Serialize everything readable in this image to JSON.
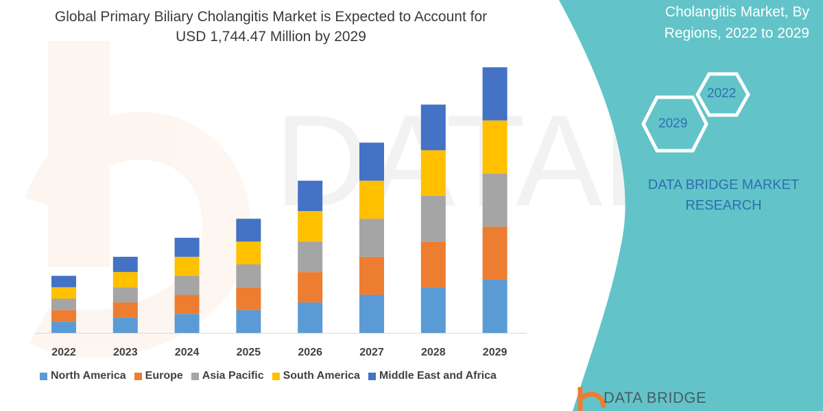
{
  "title": "Global Primary Biliary Cholangitis Market is Expected to Account for USD 1,744.47 Million by 2029",
  "side_panel": {
    "title_lines": [
      "Cholangitis Market, By",
      "Regions, 2022 to 2029"
    ],
    "hex_labels": [
      "2022",
      "2029"
    ],
    "brand_lines": [
      "DATA BRIDGE MARKET",
      "RESEARCH"
    ],
    "logo_text": "DATA BRIDGE",
    "color": "#62C4C8"
  },
  "chart_data": {
    "type": "bar",
    "stacked": true,
    "categories": [
      "2022",
      "2023",
      "2024",
      "2025",
      "2026",
      "2027",
      "2028",
      "2029"
    ],
    "series": [
      {
        "name": "North America",
        "color": "#5B9BD5",
        "values": [
          75,
          100,
          125,
          150,
          200,
          250,
          300,
          349
        ]
      },
      {
        "name": "Europe",
        "color": "#ED7D31",
        "values": [
          75,
          100,
          125,
          150,
          200,
          250,
          300,
          349
        ]
      },
      {
        "name": "Asia Pacific",
        "color": "#A5A5A5",
        "values": [
          75,
          100,
          125,
          150,
          200,
          250,
          300,
          349
        ]
      },
      {
        "name": "South America",
        "color": "#FFC000",
        "values": [
          75,
          100,
          125,
          150,
          200,
          250,
          300,
          349
        ]
      },
      {
        "name": "Middle East and Africa",
        "color": "#4472C4",
        "values": [
          75,
          100,
          125,
          150,
          200,
          250,
          300,
          349
        ]
      }
    ],
    "ylim": [
      0,
      1800
    ],
    "grid": false,
    "legend_position": "bottom"
  }
}
